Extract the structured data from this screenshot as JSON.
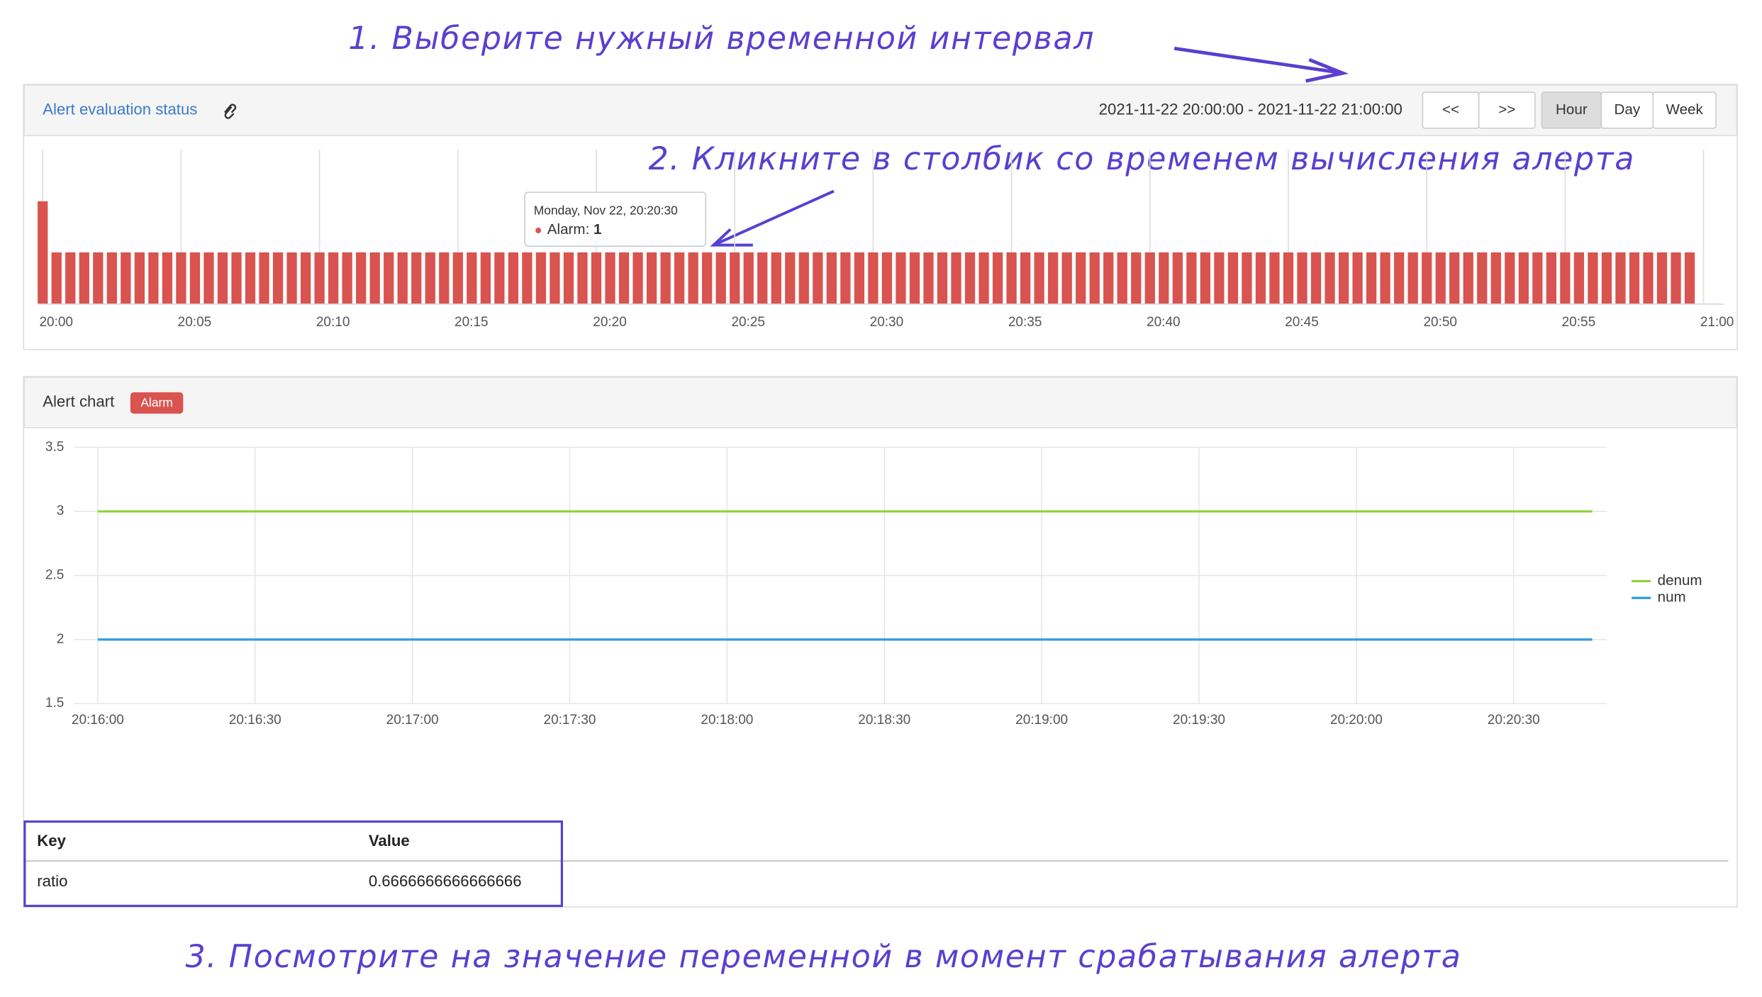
{
  "annotations": [
    "1. Выберите нужный временной интервал",
    "2. Кликните в столбик со временем вычисления алерта",
    "3. Посмотрите на значение переменной в момент срабатывания алерта"
  ],
  "status_panel": {
    "title": "Alert evaluation status",
    "range": "2021-11-22 20:00:00 - 2021-11-22 21:00:00",
    "nav_buttons": [
      "<<",
      ">>"
    ],
    "period_buttons": [
      "Hour",
      "Day",
      "Week"
    ],
    "active_period": 0,
    "tooltip": {
      "time": "Monday, Nov 22, 20:20:30",
      "label": "Alarm: ",
      "value": 1
    }
  },
  "alert_panel": {
    "title": "Alert chart",
    "badge": "Alarm"
  },
  "chart_data": [
    {
      "type": "bar",
      "name": "Alarm",
      "color": "#d9534f",
      "x": [
        0,
        0.5,
        1,
        1.5,
        2,
        2.5,
        3,
        3.5,
        4,
        4.5,
        5,
        5.5,
        6,
        6.5,
        7,
        7.5,
        8,
        8.5,
        9,
        9.5,
        10,
        10.5,
        11,
        11.5,
        12,
        12.5,
        13,
        13.5,
        14,
        14.5,
        15,
        15.5,
        16,
        16.5,
        17,
        17.5,
        18,
        18.5,
        19,
        19.5,
        20,
        20.5,
        21,
        21.5,
        22,
        22.5,
        23,
        23.5,
        24,
        24.5,
        25,
        25.5,
        26,
        26.5,
        27,
        27.5,
        28,
        28.5,
        29,
        29.5,
        30,
        30.5,
        31,
        31.5,
        32,
        32.5,
        33,
        33.5,
        34,
        34.5,
        35,
        35.5,
        36,
        36.5,
        37,
        37.5,
        38,
        38.5,
        39,
        39.5,
        40,
        40.5,
        41,
        41.5,
        42,
        42.5,
        43,
        43.5,
        44,
        44.5,
        45,
        45.5,
        46,
        46.5,
        47,
        47.5,
        48,
        48.5,
        49,
        49.5,
        50,
        50.5,
        51,
        51.5,
        52,
        52.5,
        53,
        53.5,
        54,
        54.5,
        55,
        55.5,
        56,
        56.5,
        57,
        57.5,
        58,
        58.5,
        59,
        59.5
      ],
      "values": [
        2,
        1,
        1,
        1,
        1,
        1,
        1,
        1,
        1,
        1,
        1,
        1,
        1,
        1,
        1,
        1,
        1,
        1,
        1,
        1,
        1,
        1,
        1,
        1,
        1,
        1,
        1,
        1,
        1,
        1,
        1,
        1,
        1,
        1,
        1,
        1,
        1,
        1,
        1,
        1,
        1,
        1,
        1,
        1,
        1,
        1,
        1,
        1,
        1,
        1,
        1,
        1,
        1,
        1,
        1,
        1,
        1,
        1,
        1,
        1,
        1,
        1,
        1,
        1,
        1,
        1,
        1,
        1,
        1,
        1,
        1,
        1,
        1,
        1,
        1,
        1,
        1,
        1,
        1,
        1,
        1,
        1,
        1,
        1,
        1,
        1,
        1,
        1,
        1,
        1,
        1,
        1,
        1,
        1,
        1,
        1,
        1,
        1,
        1,
        1,
        1,
        1,
        1,
        1,
        1,
        1,
        1,
        1,
        1,
        1,
        1,
        1,
        1,
        1,
        1,
        1,
        1,
        1,
        1,
        1
      ],
      "xlim": [
        0,
        60
      ],
      "ylim": [
        0,
        2
      ],
      "xticks": [
        {
          "value": 0,
          "label": "20:00"
        },
        {
          "value": 5,
          "label": "20:05"
        },
        {
          "value": 10,
          "label": "20:10"
        },
        {
          "value": 15,
          "label": "20:15"
        },
        {
          "value": 20,
          "label": "20:20"
        },
        {
          "value": 25,
          "label": "20:25"
        },
        {
          "value": 30,
          "label": "20:30"
        },
        {
          "value": 35,
          "label": "20:35"
        },
        {
          "value": 40,
          "label": "20:40"
        },
        {
          "value": 45,
          "label": "20:45"
        },
        {
          "value": 50,
          "label": "20:50"
        },
        {
          "value": 55,
          "label": "20:55"
        },
        {
          "value": 60,
          "label": "21:00"
        }
      ],
      "grid": true
    },
    {
      "type": "line",
      "x": [
        0,
        285
      ],
      "series": [
        {
          "name": "denum",
          "color": "#8ed13b",
          "values": [
            3,
            3
          ]
        },
        {
          "name": "num",
          "color": "#2f9be0",
          "values": [
            2,
            2
          ]
        }
      ],
      "xlim": [
        0,
        300
      ],
      "ylim": [
        1.5,
        3.5
      ],
      "xticks": [
        {
          "value": 0,
          "label": "20:16:00"
        },
        {
          "value": 30,
          "label": "20:16:30"
        },
        {
          "value": 60,
          "label": "20:17:00"
        },
        {
          "value": 90,
          "label": "20:17:30"
        },
        {
          "value": 120,
          "label": "20:18:00"
        },
        {
          "value": 150,
          "label": "20:18:30"
        },
        {
          "value": 180,
          "label": "20:19:00"
        },
        {
          "value": 210,
          "label": "20:19:30"
        },
        {
          "value": 240,
          "label": "20:20:00"
        },
        {
          "value": 270,
          "label": "20:20:30"
        }
      ],
      "yticks": [
        1.5,
        2,
        2.5,
        3,
        3.5
      ],
      "grid": true,
      "legend": "right"
    }
  ],
  "table": {
    "header": [
      "Key",
      "Value"
    ],
    "rows": [
      [
        "ratio",
        "0.6666666666666666"
      ]
    ]
  }
}
